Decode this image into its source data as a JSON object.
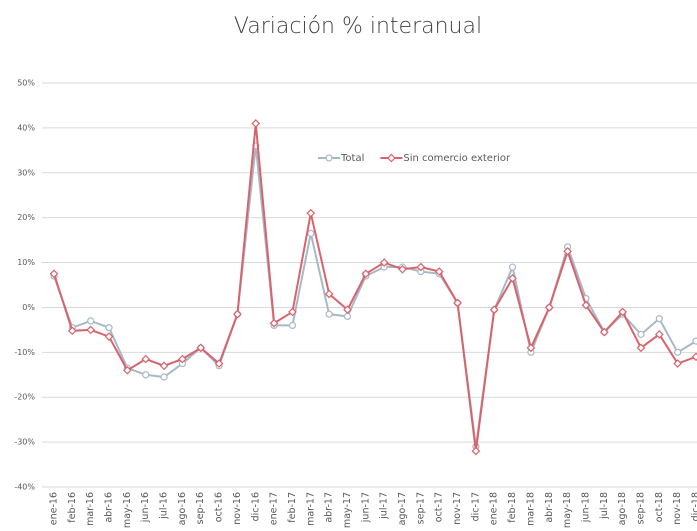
{
  "chart_data": {
    "type": "line",
    "title": "Variación % interanual",
    "categories": [
      "ene-16",
      "feb-16",
      "mar-16",
      "abr-16",
      "may-16",
      "jun-16",
      "jul-16",
      "ago-16",
      "sep-16",
      "oct-16",
      "nov-16",
      "dic-16",
      "ene-17",
      "feb-17",
      "mar-17",
      "abr-17",
      "may-17",
      "jun-17",
      "jul-17",
      "ago-17",
      "sep-17",
      "oct-17",
      "nov-17",
      "dic-17",
      "ene-18",
      "feb-18",
      "mar-18",
      "abr-18",
      "may-18",
      "jun-18",
      "jul-18",
      "ago-18",
      "sep-18",
      "oct-18",
      "nov-18",
      "dic-18"
    ],
    "series": [
      {
        "name": "Total",
        "color": "#a7b9c8",
        "values": [
          7,
          -4.5,
          -3,
          -4.5,
          -13.5,
          -15,
          -15.5,
          -12.5,
          -9,
          -13,
          -1.5,
          36,
          -4,
          -4,
          16.5,
          -1.5,
          -2,
          7,
          9,
          9,
          8,
          7.5,
          1,
          -31,
          -0.5,
          9,
          -10,
          0,
          13.5,
          2,
          -5.5,
          -1.5,
          -6,
          -2.5,
          -10,
          -7.5
        ]
      },
      {
        "name": "Sin comercio exterior",
        "color": "#d9636c",
        "values": [
          7.5,
          -5.2,
          -5,
          -6.5,
          -14,
          -11.5,
          -13,
          -11.5,
          -9,
          -12.5,
          -1.5,
          41,
          -3.5,
          -1,
          21,
          3,
          -0.5,
          7.5,
          10,
          8.5,
          9,
          8,
          1,
          -32,
          -0.5,
          6.5,
          -9,
          0,
          12.5,
          0.5,
          -5.5,
          -1,
          -9,
          -6,
          -12.5,
          -11
        ]
      }
    ],
    "ylim": [
      -40,
      50
    ],
    "yticks": [
      {
        "value": -40,
        "label": "-40%"
      },
      {
        "value": -30,
        "label": "-30%"
      },
      {
        "value": -20,
        "label": "-20%"
      },
      {
        "value": -10,
        "label": "-10%"
      },
      {
        "value": 0,
        "label": "0%"
      },
      {
        "value": 10,
        "label": "10%"
      },
      {
        "value": 20,
        "label": "20%"
      },
      {
        "value": 30,
        "label": "30%"
      },
      {
        "value": 40,
        "label": "40%"
      },
      {
        "value": 50,
        "label": "50%"
      }
    ],
    "grid": true,
    "legend": "top"
  }
}
